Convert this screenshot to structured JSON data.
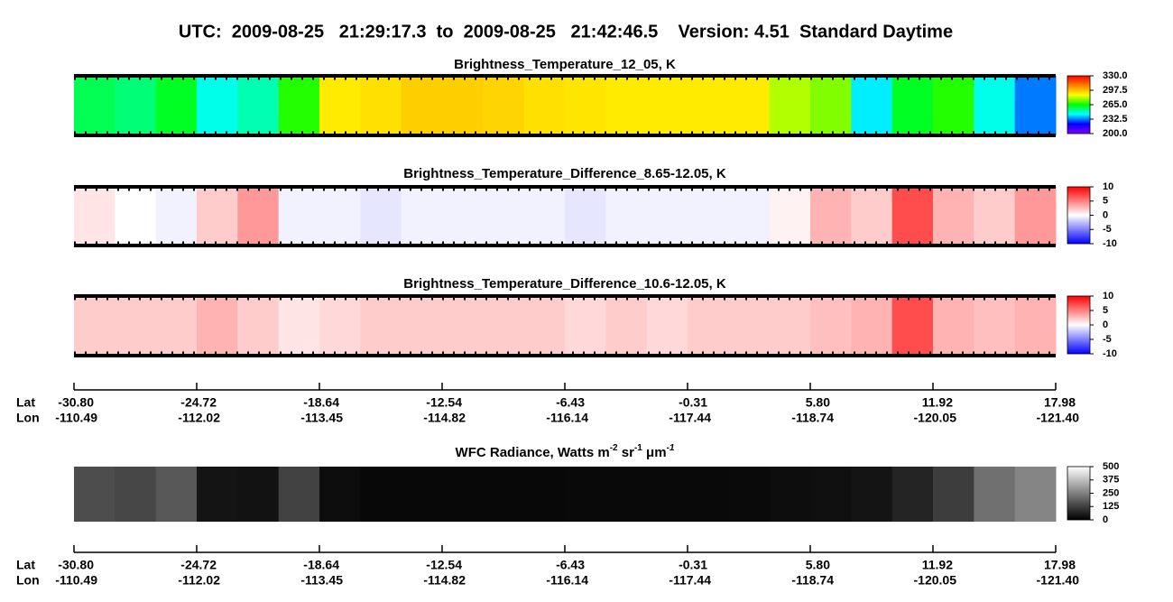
{
  "title": "UTC:  2009-08-25   21:29:17.3  to  2009-08-25   21:42:46.5    Version: 4.51  Standard Daytime",
  "chart_data": [
    {
      "type": "heatmap",
      "title": "Brightness_Temperature_12_05, K",
      "values": [
        258,
        255,
        262,
        245,
        250,
        268,
        290,
        292,
        295,
        295,
        294,
        292,
        291,
        290,
        290,
        290,
        290,
        280,
        276,
        242,
        262,
        268,
        245,
        232
      ],
      "colormap": [
        "#8000ff",
        "#0000ff",
        "#00ffff",
        "#00ff00",
        "#ffff00",
        "#ff8000",
        "#ff0000"
      ],
      "clim": [
        200,
        330
      ],
      "cticks": [
        {
          "value": 330,
          "label": "330.0"
        },
        297.5,
        {
          "value": 265,
          "label": "265.0"
        },
        232.5,
        {
          "value": 200,
          "label": "200.0"
        }
      ]
    },
    {
      "type": "heatmap",
      "title": "Brightness_Temperature_Difference_8.65-12.05, K",
      "values": [
        1,
        0,
        -0.5,
        2,
        4,
        -0.5,
        -0.5,
        -1,
        -0.5,
        -0.5,
        -0.5,
        -0.5,
        -1,
        -0.5,
        -0.5,
        -0.5,
        -0.5,
        0.5,
        3,
        2,
        7,
        3,
        2,
        4
      ],
      "colormap": [
        "#0000ff",
        "#ffffff",
        "#ff0000"
      ],
      "clim": [
        -10,
        10
      ],
      "cticks": [
        10,
        5,
        0,
        -5,
        -10
      ]
    },
    {
      "type": "heatmap",
      "title": "Brightness_Temperature_Difference_10.6-12.05, K",
      "values": [
        2,
        2,
        2,
        3,
        2,
        1,
        1.5,
        2,
        2,
        2,
        2,
        2,
        1.5,
        2,
        1.5,
        2,
        2,
        2,
        2.5,
        3,
        7,
        3,
        2.5,
        3
      ],
      "colormap": [
        "#0000ff",
        "#ffffff",
        "#ff0000"
      ],
      "clim": [
        -10,
        10
      ],
      "cticks": [
        10,
        5,
        0,
        -5,
        -10
      ]
    },
    {
      "type": "heatmap",
      "title": [
        "WFC Radiance, Watts m",
        "-2",
        " sr",
        "-1",
        " μm",
        "-1"
      ],
      "values": [
        150,
        140,
        170,
        40,
        35,
        130,
        25,
        15,
        15,
        15,
        15,
        15,
        18,
        18,
        18,
        18,
        20,
        25,
        30,
        40,
        70,
        120,
        220,
        260
      ],
      "colormap": [
        "#000000",
        "#ffffff"
      ],
      "clim": [
        0,
        500
      ],
      "cticks": [
        500,
        375,
        250,
        125,
        0
      ]
    }
  ],
  "track_axes": [
    {
      "labels": [
        "Lat",
        "Lon"
      ],
      "lat": [
        "-30.80",
        "-24.72",
        "-18.64",
        "-12.54",
        "-6.43",
        "-0.31",
        "5.80",
        "11.92",
        "17.98"
      ],
      "lon": [
        "-110.49",
        "-112.02",
        "-113.45",
        "-114.82",
        "-116.14",
        "-117.44",
        "-118.74",
        "-120.05",
        "-121.40"
      ]
    },
    {
      "labels": [
        "Lat",
        "Lon"
      ],
      "lat": [
        "-30.80",
        "-24.72",
        "-18.64",
        "-12.54",
        "-6.43",
        "-0.31",
        "5.80",
        "11.92",
        "17.98"
      ],
      "lon": [
        "-110.49",
        "-112.02",
        "-113.45",
        "-114.82",
        "-116.14",
        "-117.44",
        "-118.74",
        "-120.05",
        "-121.40"
      ]
    }
  ]
}
